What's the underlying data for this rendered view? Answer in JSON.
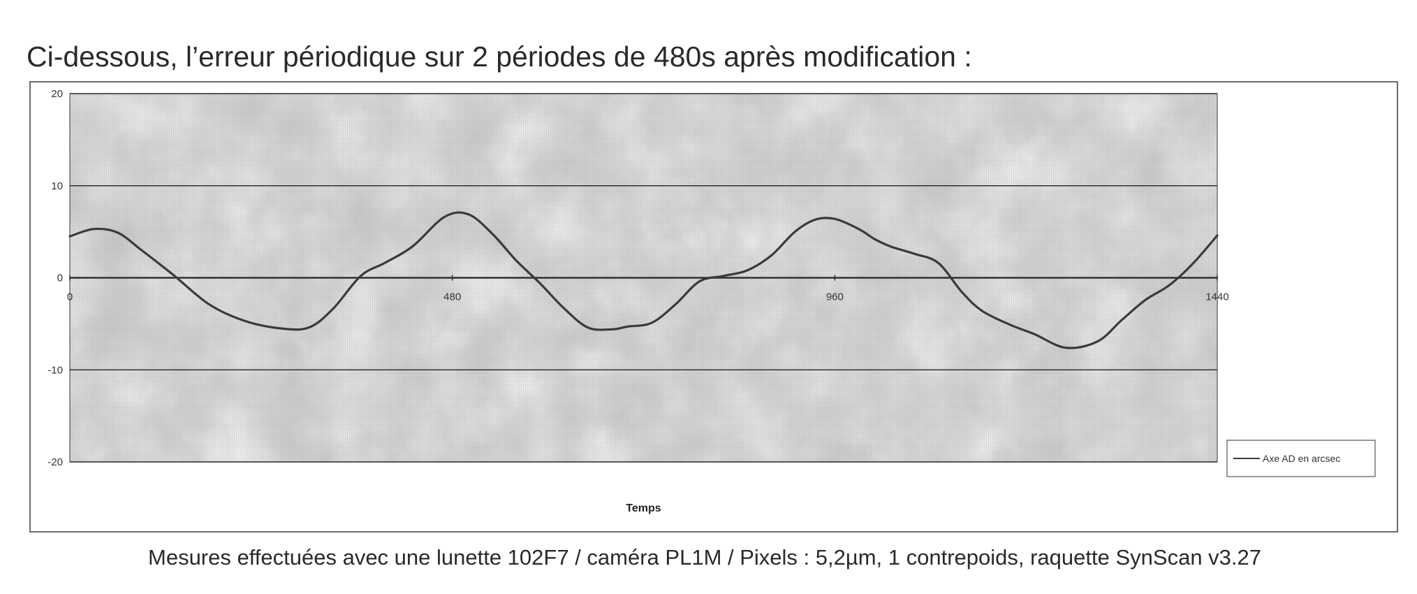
{
  "heading": "Ci-dessous, l’erreur périodique sur 2 périodes de 480s après modification :",
  "caption": "Mesures effectuées avec une lunette 102F7 / caméra PL1M / Pixels : 5,2µm, 1 contrepoids, raquette SynScan v3.27",
  "colors": {
    "line": "#3a3a3a",
    "gridline": "#2f2f2f",
    "plot_background": "#c8c8c8",
    "plot_border": "#555555"
  },
  "chart_data": {
    "type": "line",
    "title": "",
    "xlabel": "Temps",
    "ylabel": "",
    "xlim": [
      0,
      1440
    ],
    "ylim": [
      -20,
      20
    ],
    "x_ticks": [
      0,
      480,
      960,
      1440
    ],
    "y_ticks": [
      20,
      10,
      0,
      -10,
      -20
    ],
    "grid": true,
    "legend_position": "bottom-right",
    "series": [
      {
        "name": "Axe AD en arcsec",
        "x": [
          0,
          30,
          60,
          90,
          130,
          175,
          220,
          265,
          300,
          330,
          365,
          395,
          430,
          470,
          500,
          530,
          560,
          590,
          620,
          650,
          680,
          700,
          730,
          760,
          790,
          820,
          850,
          880,
          910,
          935,
          960,
          990,
          1010,
          1030,
          1060,
          1090,
          1120,
          1145,
          1180,
          1210,
          1250,
          1290,
          1320,
          1350,
          1380,
          1410,
          1440
        ],
        "y": [
          4.5,
          5.3,
          4.9,
          3.0,
          0.3,
          -2.9,
          -4.7,
          -5.5,
          -5.4,
          -3.4,
          0.2,
          1.6,
          3.4,
          6.6,
          6.9,
          4.8,
          1.9,
          -0.6,
          -3.3,
          -5.4,
          -5.6,
          -5.3,
          -4.9,
          -2.9,
          -0.4,
          0.2,
          0.8,
          2.4,
          5.0,
          6.3,
          6.4,
          5.3,
          4.2,
          3.4,
          2.6,
          1.6,
          -1.6,
          -3.6,
          -5.1,
          -6.1,
          -7.6,
          -6.9,
          -4.6,
          -2.4,
          -0.8,
          1.6,
          4.6
        ]
      }
    ]
  }
}
